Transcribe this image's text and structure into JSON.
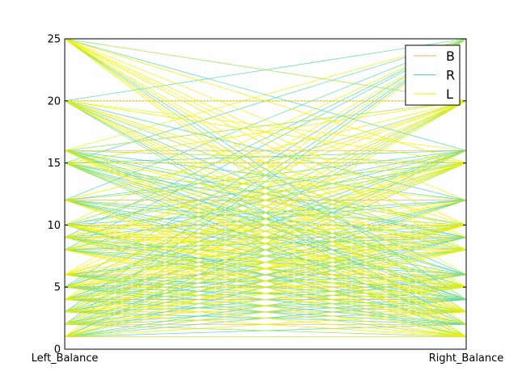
{
  "chart_data": {
    "type": "line",
    "subtype": "parallel-coordinates",
    "title": "",
    "axes": [
      "Left_Balance",
      "Right_Balance"
    ],
    "ylim": [
      0,
      25
    ],
    "yticks": [
      0,
      5,
      10,
      15,
      20,
      25
    ],
    "grid": "horizontal-dotted",
    "legend": {
      "placement": "top-right",
      "entries": [
        "B",
        "R",
        "L"
      ]
    },
    "series": [
      {
        "name": "B",
        "color": "#d9b070",
        "count": 49
      },
      {
        "name": "R",
        "color": "#4dd5b0",
        "count": 288
      },
      {
        "name": "L",
        "color": "#f2f200",
        "count": 288
      }
    ],
    "value_levels": [
      1,
      2,
      3,
      4,
      5,
      6,
      8,
      9,
      10,
      12,
      15,
      16,
      20,
      25
    ]
  }
}
